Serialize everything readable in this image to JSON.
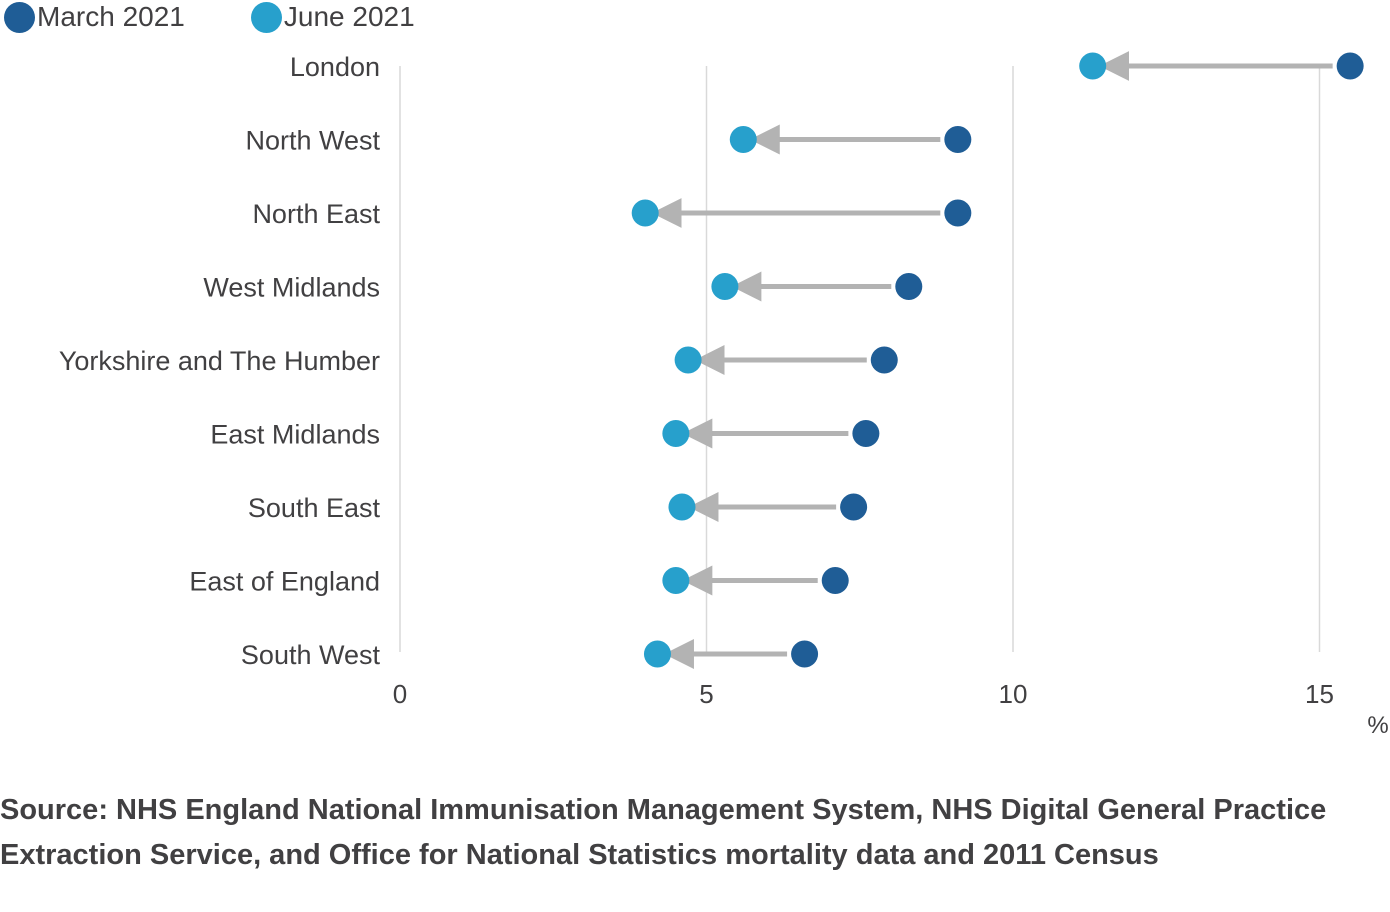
{
  "chart_data": {
    "type": "dumbbell",
    "series": [
      {
        "name": "March 2021",
        "color": "#1f5d96"
      },
      {
        "name": "June 2021",
        "color": "#27a0cc"
      }
    ],
    "categories": [
      "London",
      "North West",
      "North East",
      "West Midlands",
      "Yorkshire and The Humber",
      "East Midlands",
      "South East",
      "East of England",
      "South West"
    ],
    "march_2021": [
      15.5,
      9.1,
      9.1,
      8.3,
      7.9,
      7.6,
      7.4,
      7.1,
      6.6
    ],
    "june_2021": [
      11.3,
      5.6,
      4.0,
      5.3,
      4.7,
      4.5,
      4.6,
      4.5,
      4.2
    ],
    "x_ticks": [
      "0",
      "5",
      "10",
      "15"
    ],
    "x_unit": "%",
    "xlim": [
      0,
      15.6
    ],
    "grid": true,
    "legend": "top-left",
    "arrow_color": "#b3b3b3",
    "gridline_color": "#d9d9d9"
  },
  "source": "Source: NHS England National Immunisation Management System, NHS Digital General Practice Extraction Service, and Office for National Statistics mortality data and 2011 Census"
}
